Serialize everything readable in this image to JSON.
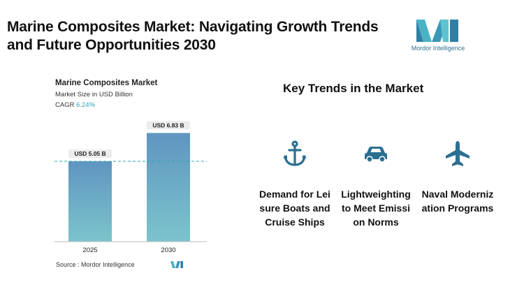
{
  "page": {
    "title": "Marine Composites Market: Navigating Growth Trends and Future Opportunities 2030"
  },
  "logo": {
    "text": "Mordor Intelligence",
    "color": "#2d6f8f"
  },
  "chart_data": {
    "type": "bar",
    "title": "Marine Composites Market",
    "subtitle": "Market Size in USD Billion",
    "cagr_label": "CAGR",
    "cagr_value": "6.24%",
    "categories": [
      "2025",
      "2030"
    ],
    "values": [
      5.05,
      6.83
    ],
    "data_labels": [
      "USD 5.05 B",
      "USD 6.83 B"
    ],
    "ylim": [
      0,
      7.2
    ],
    "grid": false,
    "reference_line": 5.05,
    "colors": {
      "bar_top": "#5f95c0",
      "bar_bottom": "#7cc4cc",
      "accent": "#2aa6b7"
    }
  },
  "source": {
    "label": "Source :",
    "name": "Mordor Intelligence"
  },
  "trends": {
    "title": "Key Trends in the Market",
    "items": [
      {
        "icon": "anchor-icon",
        "label": "Demand for Leisure Boats and Cruise Ships"
      },
      {
        "icon": "car-icon",
        "label": "Lightweighting to Meet Emission Norms"
      },
      {
        "icon": "airplane-icon",
        "label": "Naval Modernization Programs"
      }
    ],
    "icon_color": "#2b6f92"
  }
}
